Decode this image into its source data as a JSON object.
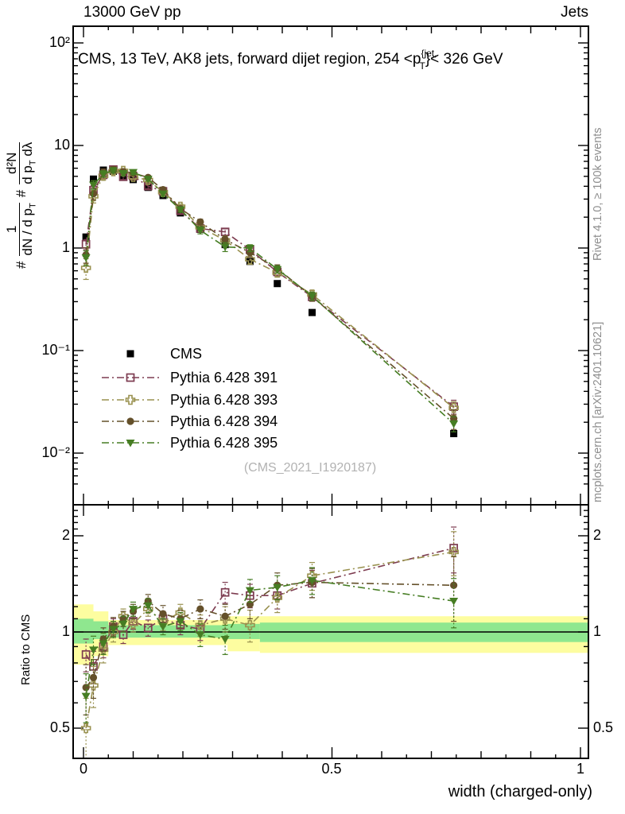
{
  "header": {
    "left": "13000 GeV pp",
    "right": "Jets"
  },
  "plot_title": {
    "prefix": "CMS, 13 TeV, AK8 jets, forward dijet region, 254 <p",
    "sup": "{jet,",
    "sub": "T",
    "suffix": "}< 326 GeV"
  },
  "watermark": "(CMS_2021_I1920187)",
  "side_notes": {
    "top": "Rivet 4.1.0, ≥ 100k events",
    "bottom": "mcplots.cern.ch [arXiv:2401.10621]"
  },
  "ylabel_main": {
    "h1": "#",
    "n1": "1",
    "d1a": "dN / d p",
    "d1sub": "T",
    "h2": "#",
    "n2": "d²N",
    "d2a": "d p",
    "d2sub": "T",
    "d2b": " dλ"
  },
  "axes": {
    "main_y": {
      "tick_labels": [
        "10²",
        "10",
        "1",
        "10⁻¹",
        "10⁻²"
      ],
      "tick_values": [
        100,
        10,
        1,
        0.1,
        0.01
      ]
    },
    "ratio_y": {
      "label": "Ratio to CMS",
      "tick_labels": [
        "2",
        "1",
        "0.5"
      ],
      "tick_values": [
        2,
        1,
        0.5
      ]
    },
    "x": {
      "label": "width (charged-only)",
      "tick_labels": [
        "0",
        "0.5",
        "1"
      ],
      "tick_values": [
        0,
        0.5,
        1
      ]
    }
  },
  "legend": [
    {
      "label": "CMS",
      "marker": "square-filled",
      "color": "#000000",
      "line": false
    },
    {
      "label": "Pythia 6.428 391",
      "marker": "square-open",
      "color": "#7d3c50",
      "line": true
    },
    {
      "label": "Pythia 6.428 393",
      "marker": "cross-open",
      "color": "#99914f",
      "line": true
    },
    {
      "label": "Pythia 6.428 394",
      "marker": "circle-filled",
      "color": "#64502a",
      "line": true
    },
    {
      "label": "Pythia 6.428 395",
      "marker": "triangle-down-filled",
      "color": "#467d23",
      "line": true
    }
  ],
  "chart_data": {
    "type": "line",
    "title": "CMS, 13 TeV, AK8 jets, forward dijet region, 254 < pT(jet) < 326 GeV",
    "xlabel": "width (charged-only)",
    "ylabel_main": "# 1/(dN/dpT) # d2N/(dpT dlambda)",
    "ylabel_ratio": "Ratio to CMS",
    "main_axis": {
      "yscale": "log",
      "ylim": [
        0.0042,
        145
      ],
      "xlim": [
        -0.0208,
        1.016
      ]
    },
    "ratio_axis": {
      "yscale": "log",
      "ylim": [
        0.402,
        2.5
      ]
    },
    "x": [
      0.005,
      0.02,
      0.04,
      0.06,
      0.08,
      0.1,
      0.13,
      0.16,
      0.195,
      0.235,
      0.285,
      0.335,
      0.39,
      0.46,
      0.745
    ],
    "cms_values": [
      1.28,
      4.7,
      5.75,
      5.6,
      5.05,
      4.65,
      3.9,
      3.25,
      2.2,
      1.52,
      1.08,
      0.74,
      0.45,
      0.235,
      0.0155
    ],
    "cms_rel_err": 0.035,
    "series": [
      {
        "name": "Pythia 6.428 391",
        "color": "#7d3c50",
        "marker": "square-open",
        "ratio": [
          0.85,
          0.78,
          0.9,
          1.04,
          0.98,
          1.08,
          1.03,
          1.1,
          1.05,
          1.02,
          1.33,
          1.3,
          1.3,
          1.42,
          1.83
        ],
        "ratio_err": [
          0.1,
          0.09,
          0.07,
          0.06,
          0.06,
          0.06,
          0.06,
          0.06,
          0.07,
          0.08,
          0.1,
          0.11,
          0.12,
          0.14,
          0.3
        ]
      },
      {
        "name": "Pythia 6.428 393",
        "color": "#99914f",
        "marker": "cross-open",
        "ratio": [
          0.5,
          0.68,
          0.88,
          1.0,
          1.12,
          1.06,
          1.18,
          1.08,
          1.15,
          1.05,
          1.1,
          1.05,
          1.28,
          1.5,
          1.78
        ],
        "ratio_err": [
          0.12,
          0.1,
          0.08,
          0.07,
          0.06,
          0.06,
          0.06,
          0.07,
          0.07,
          0.08,
          0.1,
          0.12,
          0.13,
          0.15,
          0.28
        ]
      },
      {
        "name": "Pythia 6.428 394",
        "color": "#64502a",
        "marker": "circle-filled",
        "ratio": [
          0.67,
          0.72,
          0.95,
          1.04,
          1.1,
          1.16,
          1.25,
          1.14,
          1.1,
          1.18,
          1.12,
          1.22,
          1.4,
          1.43,
          1.4
        ],
        "ratio_err": [
          0.12,
          0.1,
          0.08,
          0.07,
          0.06,
          0.06,
          0.06,
          0.07,
          0.07,
          0.08,
          0.1,
          0.12,
          0.13,
          0.15,
          0.32
        ]
      },
      {
        "name": "Pythia 6.428 395",
        "color": "#467d23",
        "marker": "triangle-down-filled",
        "ratio": [
          0.63,
          0.88,
          0.92,
          1.02,
          1.06,
          1.18,
          1.21,
          1.04,
          1.08,
          0.98,
          0.95,
          1.35,
          1.38,
          1.45,
          1.25
        ],
        "ratio_err": [
          0.11,
          0.09,
          0.07,
          0.06,
          0.06,
          0.06,
          0.06,
          0.06,
          0.07,
          0.08,
          0.1,
          0.11,
          0.12,
          0.14,
          0.22
        ]
      }
    ],
    "ratio_bands": [
      {
        "x0": -0.0208,
        "x1": 0.02,
        "yellow": [
          0.79,
          1.22
        ],
        "green": [
          0.92,
          1.1
        ]
      },
      {
        "x0": 0.02,
        "x1": 0.05,
        "yellow": [
          0.84,
          1.16
        ],
        "green": [
          0.95,
          1.08
        ]
      },
      {
        "x0": 0.05,
        "x1": 0.29,
        "yellow": [
          0.91,
          1.09
        ],
        "green": [
          0.96,
          1.05
        ]
      },
      {
        "x0": 0.29,
        "x1": 0.355,
        "yellow": [
          0.87,
          1.12
        ],
        "green": [
          0.95,
          1.06
        ]
      },
      {
        "x0": 0.355,
        "x1": 1.016,
        "yellow": [
          0.86,
          1.12
        ],
        "green": [
          0.93,
          1.07
        ]
      }
    ],
    "band_colors": {
      "yellow": "#fdfda0",
      "green": "#8fe78f"
    },
    "legend_position": "center-left",
    "grid": false
  }
}
